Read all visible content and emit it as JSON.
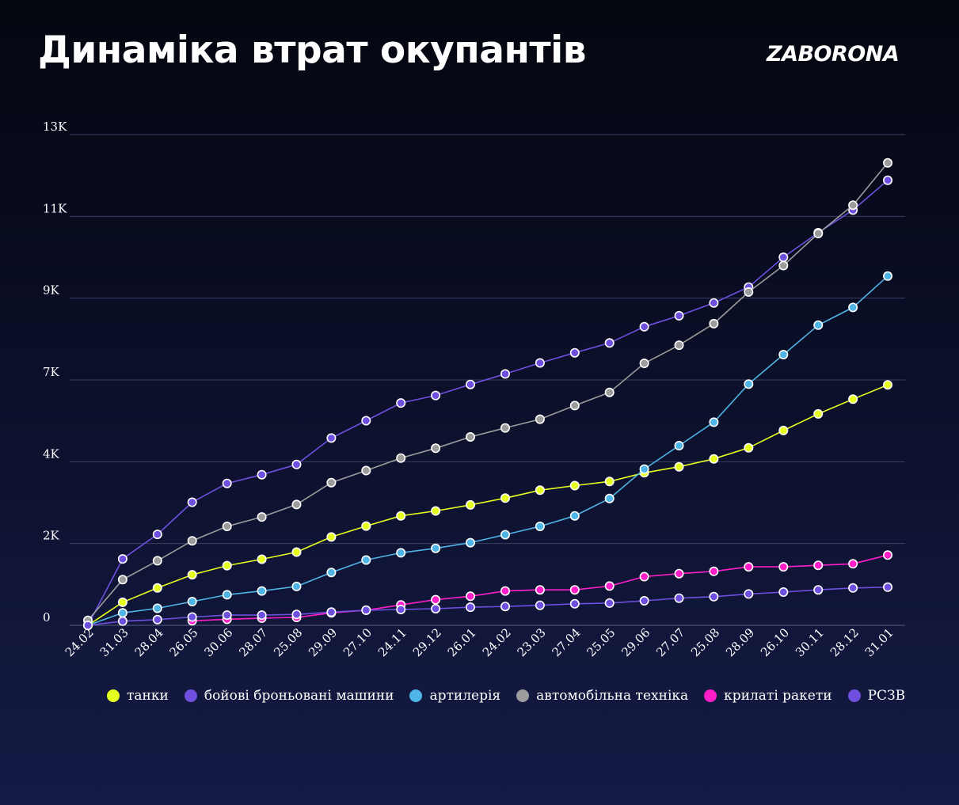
{
  "title": "Динаміка втрат окупантів",
  "brand": "ZABORONA",
  "chart_data": {
    "type": "line",
    "title": "Динаміка втрат окупантів",
    "x": [
      "24.02",
      "31.03",
      "28.04",
      "26.05",
      "30.06",
      "28.07",
      "25.08",
      "29.09",
      "27.10",
      "24.11",
      "29.12",
      "26.01",
      "24.02",
      "23.03",
      "27.04",
      "25.05",
      "29.06",
      "27.07",
      "25.08",
      "28.09",
      "26.10",
      "30.11",
      "28.12",
      "31.01"
    ],
    "y_ticks": [
      "0",
      "2K",
      "4K",
      "7K",
      "9K",
      "11K",
      "13K"
    ],
    "ylim": [
      0,
      13000
    ],
    "grid": true,
    "legend_position": "bottom",
    "series": [
      {
        "name": "танки",
        "color": "#e6ff1e",
        "values": [
          0,
          610,
          990,
          1340,
          1580,
          1750,
          1940,
          2340,
          2630,
          2900,
          3030,
          3190,
          3370,
          3580,
          3700,
          3810,
          4040,
          4200,
          4410,
          4700,
          5160,
          5600,
          5990,
          6370
        ]
      },
      {
        "name": "бойові броньовані машини",
        "color": "#6f4fe0",
        "values": [
          0,
          1760,
          2410,
          3260,
          3760,
          3990,
          4260,
          4960,
          5420,
          5890,
          6090,
          6380,
          6660,
          6950,
          7220,
          7480,
          7910,
          8200,
          8540,
          8960,
          9750,
          10400,
          11000,
          11790
        ]
      },
      {
        "name": "артилерія",
        "color": "#4fb4e6",
        "values": [
          0,
          330,
          450,
          630,
          810,
          910,
          1030,
          1400,
          1730,
          1920,
          2040,
          2190,
          2400,
          2620,
          2900,
          3360,
          4140,
          4760,
          5380,
          6390,
          7170,
          7950,
          8420,
          9250
        ]
      },
      {
        "name": "автомобільна техніка",
        "color": "#9c9c9c",
        "values": [
          130,
          1210,
          1710,
          2240,
          2620,
          2870,
          3200,
          3780,
          4100,
          4430,
          4690,
          4990,
          5230,
          5460,
          5820,
          6170,
          6940,
          7420,
          7990,
          8830,
          9530,
          10380,
          11130,
          12250
        ]
      },
      {
        "name": "крилаті ракети",
        "color": "#ff1ec8",
        "values": [
          null,
          null,
          null,
          120,
          160,
          190,
          210,
          330,
          400,
          540,
          680,
          770,
          910,
          940,
          940,
          1040,
          1290,
          1370,
          1430,
          1550,
          1550,
          1590,
          1630,
          1860
        ]
      },
      {
        "name": "РСЗВ",
        "color": "#6f4fe0",
        "values": [
          0,
          110,
          150,
          220,
          270,
          270,
          290,
          350,
          400,
          420,
          440,
          480,
          500,
          530,
          570,
          590,
          650,
          720,
          760,
          830,
          880,
          940,
          990,
          1010
        ]
      }
    ]
  }
}
